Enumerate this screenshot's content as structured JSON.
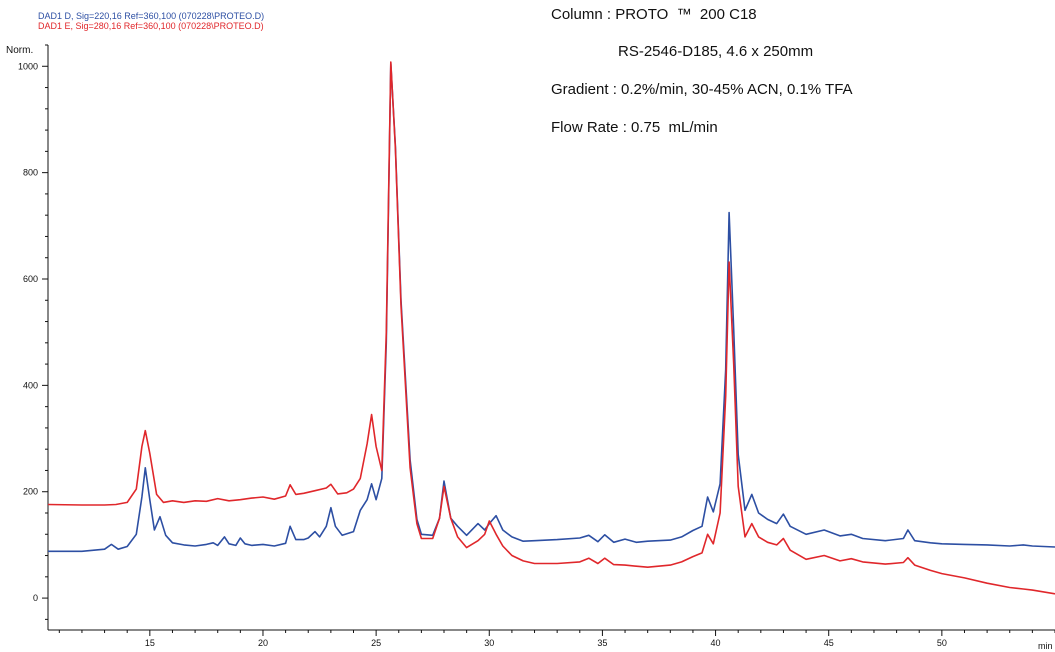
{
  "chart_data": {
    "type": "line",
    "title": "",
    "xlabel": "min",
    "ylabel": "Norm.",
    "xlim": [
      10.5,
      55
    ],
    "ylim": [
      -60,
      1040
    ],
    "x_ticks": [
      15,
      20,
      25,
      30,
      35,
      40,
      45,
      50
    ],
    "y_ticks": [
      0,
      200,
      400,
      600,
      800,
      1000
    ],
    "grid": false,
    "legend_position": "top-left",
    "series": [
      {
        "name": "DAD1 D, Sig=220,16 Ref=360,100 (070228\\PROTEO.D)",
        "color": "#2d4fa3",
        "points": [
          [
            10.5,
            88
          ],
          [
            12,
            88
          ],
          [
            13,
            92
          ],
          [
            13.3,
            101
          ],
          [
            13.6,
            92
          ],
          [
            14,
            97
          ],
          [
            14.4,
            120
          ],
          [
            14.65,
            190
          ],
          [
            14.8,
            245
          ],
          [
            15,
            185
          ],
          [
            15.2,
            128
          ],
          [
            15.45,
            153
          ],
          [
            15.7,
            118
          ],
          [
            16,
            104
          ],
          [
            16.5,
            100
          ],
          [
            17,
            98
          ],
          [
            17.5,
            101
          ],
          [
            17.8,
            104
          ],
          [
            18,
            99
          ],
          [
            18.3,
            115
          ],
          [
            18.5,
            102
          ],
          [
            18.8,
            99
          ],
          [
            19,
            113
          ],
          [
            19.2,
            102
          ],
          [
            19.5,
            99
          ],
          [
            20,
            101
          ],
          [
            20.5,
            98
          ],
          [
            21,
            103
          ],
          [
            21.2,
            135
          ],
          [
            21.45,
            110
          ],
          [
            21.8,
            110
          ],
          [
            22,
            113
          ],
          [
            22.3,
            125
          ],
          [
            22.5,
            115
          ],
          [
            22.8,
            135
          ],
          [
            23,
            170
          ],
          [
            23.2,
            135
          ],
          [
            23.5,
            118
          ],
          [
            24,
            125
          ],
          [
            24.3,
            165
          ],
          [
            24.6,
            185
          ],
          [
            24.8,
            215
          ],
          [
            25,
            185
          ],
          [
            25.25,
            225
          ],
          [
            25.45,
            480
          ],
          [
            25.65,
            1005
          ],
          [
            25.85,
            850
          ],
          [
            26.1,
            560
          ],
          [
            26.5,
            260
          ],
          [
            26.8,
            148
          ],
          [
            27,
            120
          ],
          [
            27.5,
            118
          ],
          [
            27.8,
            150
          ],
          [
            28,
            220
          ],
          [
            28.3,
            150
          ],
          [
            28.6,
            135
          ],
          [
            29,
            118
          ],
          [
            29.5,
            140
          ],
          [
            29.8,
            128
          ],
          [
            30,
            140
          ],
          [
            30.3,
            155
          ],
          [
            30.6,
            128
          ],
          [
            31,
            115
          ],
          [
            31.5,
            107
          ],
          [
            32,
            108
          ],
          [
            33,
            110
          ],
          [
            34,
            113
          ],
          [
            34.4,
            118
          ],
          [
            34.8,
            106
          ],
          [
            35.1,
            119
          ],
          [
            35.5,
            105
          ],
          [
            36,
            111
          ],
          [
            36.5,
            105
          ],
          [
            37,
            107
          ],
          [
            38,
            109
          ],
          [
            38.5,
            115
          ],
          [
            39,
            127
          ],
          [
            39.4,
            135
          ],
          [
            39.65,
            190
          ],
          [
            39.9,
            162
          ],
          [
            40.2,
            215
          ],
          [
            40.45,
            430
          ],
          [
            40.6,
            725
          ],
          [
            40.8,
            505
          ],
          [
            41,
            270
          ],
          [
            41.3,
            165
          ],
          [
            41.6,
            195
          ],
          [
            41.9,
            160
          ],
          [
            42.3,
            148
          ],
          [
            42.7,
            140
          ],
          [
            43,
            158
          ],
          [
            43.3,
            135
          ],
          [
            44,
            120
          ],
          [
            44.8,
            128
          ],
          [
            45.5,
            117
          ],
          [
            46,
            120
          ],
          [
            46.5,
            112
          ],
          [
            47.5,
            108
          ],
          [
            48.3,
            112
          ],
          [
            48.5,
            128
          ],
          [
            48.8,
            108
          ],
          [
            49.5,
            104
          ],
          [
            50,
            102
          ],
          [
            51,
            101
          ],
          [
            52,
            100
          ],
          [
            53,
            98
          ],
          [
            53.6,
            100
          ],
          [
            54,
            98
          ],
          [
            55,
            96
          ]
        ]
      },
      {
        "name": "DAD1 E, Sig=280,16 Ref=360,100 (070228\\PROTEO.D)",
        "color": "#e0272b",
        "points": [
          [
            10.5,
            176
          ],
          [
            12,
            175
          ],
          [
            13,
            175
          ],
          [
            13.5,
            176
          ],
          [
            14,
            180
          ],
          [
            14.4,
            205
          ],
          [
            14.65,
            285
          ],
          [
            14.8,
            315
          ],
          [
            15,
            272
          ],
          [
            15.3,
            195
          ],
          [
            15.6,
            180
          ],
          [
            16,
            183
          ],
          [
            16.5,
            180
          ],
          [
            17,
            183
          ],
          [
            17.5,
            182
          ],
          [
            18,
            187
          ],
          [
            18.5,
            183
          ],
          [
            19,
            185
          ],
          [
            19.5,
            188
          ],
          [
            20,
            190
          ],
          [
            20.5,
            186
          ],
          [
            21,
            192
          ],
          [
            21.2,
            213
          ],
          [
            21.45,
            195
          ],
          [
            21.8,
            197
          ],
          [
            22.3,
            202
          ],
          [
            22.8,
            207
          ],
          [
            23,
            214
          ],
          [
            23.3,
            196
          ],
          [
            23.7,
            198
          ],
          [
            24,
            205
          ],
          [
            24.3,
            225
          ],
          [
            24.6,
            290
          ],
          [
            24.8,
            345
          ],
          [
            25,
            285
          ],
          [
            25.25,
            240
          ],
          [
            25.45,
            500
          ],
          [
            25.65,
            1008
          ],
          [
            25.85,
            845
          ],
          [
            26.1,
            550
          ],
          [
            26.5,
            245
          ],
          [
            26.8,
            140
          ],
          [
            27,
            112
          ],
          [
            27.5,
            112
          ],
          [
            27.8,
            150
          ],
          [
            28,
            210
          ],
          [
            28.3,
            150
          ],
          [
            28.6,
            115
          ],
          [
            29,
            95
          ],
          [
            29.5,
            108
          ],
          [
            29.8,
            120
          ],
          [
            30,
            145
          ],
          [
            30.3,
            120
          ],
          [
            30.6,
            98
          ],
          [
            31,
            80
          ],
          [
            31.5,
            70
          ],
          [
            32,
            65
          ],
          [
            33,
            65
          ],
          [
            34,
            68
          ],
          [
            34.4,
            75
          ],
          [
            34.8,
            65
          ],
          [
            35.1,
            75
          ],
          [
            35.5,
            63
          ],
          [
            36,
            62
          ],
          [
            36.5,
            60
          ],
          [
            37,
            58
          ],
          [
            38,
            62
          ],
          [
            38.5,
            68
          ],
          [
            39,
            78
          ],
          [
            39.4,
            85
          ],
          [
            39.65,
            120
          ],
          [
            39.9,
            102
          ],
          [
            40.2,
            160
          ],
          [
            40.45,
            380
          ],
          [
            40.6,
            632
          ],
          [
            40.8,
            440
          ],
          [
            41,
            210
          ],
          [
            41.3,
            115
          ],
          [
            41.6,
            140
          ],
          [
            41.9,
            115
          ],
          [
            42.3,
            105
          ],
          [
            42.7,
            100
          ],
          [
            43,
            112
          ],
          [
            43.3,
            90
          ],
          [
            44,
            73
          ],
          [
            44.8,
            80
          ],
          [
            45.5,
            70
          ],
          [
            46,
            74
          ],
          [
            46.5,
            68
          ],
          [
            47.5,
            64
          ],
          [
            48.3,
            67
          ],
          [
            48.5,
            76
          ],
          [
            48.8,
            62
          ],
          [
            49.5,
            52
          ],
          [
            50,
            46
          ],
          [
            51,
            38
          ],
          [
            52,
            28
          ],
          [
            53,
            20
          ],
          [
            53.6,
            17
          ],
          [
            54,
            15
          ],
          [
            55,
            8
          ]
        ]
      }
    ]
  },
  "info": {
    "column": "Column : PROTO  ™  200 C18",
    "column_detail": "RS-2546-D185, 4.6 x 250mm",
    "gradient": "Gradient : 0.2%/min, 30-45% ACN, 0.1% TFA",
    "flow_rate": "Flow Rate : 0.75  mL/min"
  }
}
